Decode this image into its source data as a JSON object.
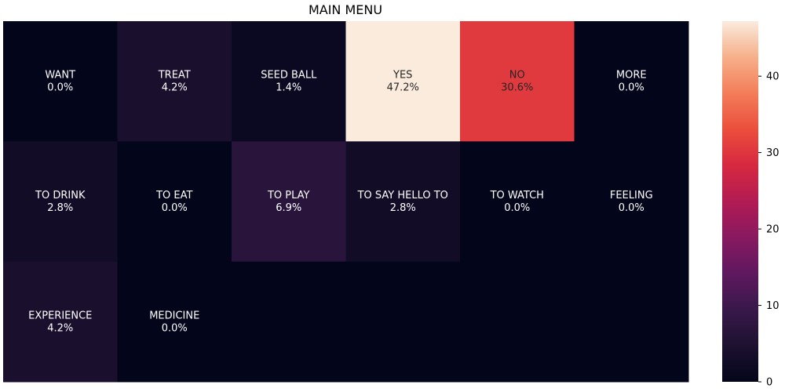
{
  "chart_data": {
    "type": "heatmap",
    "title": "MAIN MENU",
    "xlabel": "",
    "ylabel": "",
    "rows": 3,
    "cols": 6,
    "cells": [
      [
        {
          "label": "WANT",
          "percent": "0.0%",
          "value": 0.0
        },
        {
          "label": "TREAT",
          "percent": "4.2%",
          "value": 4.2
        },
        {
          "label": "SEED BALL",
          "percent": "1.4%",
          "value": 1.4
        },
        {
          "label": "YES",
          "percent": "47.2%",
          "value": 47.2
        },
        {
          "label": "NO",
          "percent": "30.6%",
          "value": 30.6
        },
        {
          "label": "MORE",
          "percent": "0.0%",
          "value": 0.0
        }
      ],
      [
        {
          "label": "TO DRINK",
          "percent": "2.8%",
          "value": 2.8
        },
        {
          "label": "TO EAT",
          "percent": "0.0%",
          "value": 0.0
        },
        {
          "label": "TO PLAY",
          "percent": "6.9%",
          "value": 6.9
        },
        {
          "label": "TO SAY HELLO TO",
          "percent": "2.8%",
          "value": 2.8
        },
        {
          "label": "TO WATCH",
          "percent": "0.0%",
          "value": 0.0
        },
        {
          "label": "FEELING",
          "percent": "0.0%",
          "value": 0.0
        }
      ],
      [
        {
          "label": "EXPERIENCE",
          "percent": "4.2%",
          "value": 4.2
        },
        {
          "label": "MEDICINE",
          "percent": "0.0%",
          "value": 0.0
        },
        {
          "label": "",
          "percent": "",
          "value": 0.0
        },
        {
          "label": "",
          "percent": "",
          "value": 0.0
        },
        {
          "label": "",
          "percent": "",
          "value": 0.0
        },
        {
          "label": "",
          "percent": "",
          "value": 0.0
        }
      ]
    ],
    "colorbar": {
      "min": 0,
      "max": 47.2,
      "ticks": [
        0,
        10,
        20,
        30,
        40
      ],
      "colormap": "rocket"
    },
    "grid": false,
    "legend": "colorbar-right"
  }
}
